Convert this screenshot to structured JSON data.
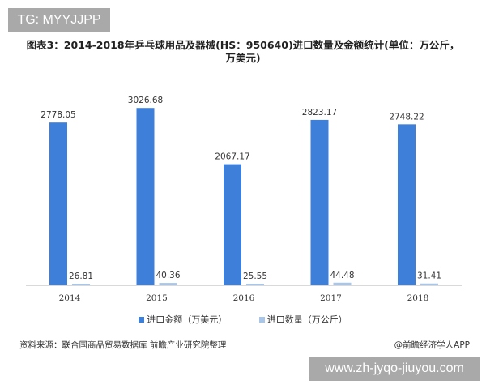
{
  "watermark_tag": "TG: MYYJJPP",
  "footer_url": "www.zh-jyqo-jiuyou.com",
  "source": "资料来源：联合国商品贸易数据库 前瞻产业研究院整理",
  "credit": "@前瞻经济学人APP",
  "chart_data": {
    "type": "bar",
    "title": "图表3：2014-2018年乒乓球用品及器械(HS：950640)进口数量及金额统计(单位：万公斤，万美元)",
    "categories": [
      "2014",
      "2015",
      "2016",
      "2017",
      "2018"
    ],
    "series": [
      {
        "name": "进口金额（万美元）",
        "values": [
          2778.05,
          3026.68,
          2067.17,
          2823.17,
          2748.22
        ],
        "color": "#3d7fd9"
      },
      {
        "name": "进口数量（万公斤）",
        "values": [
          26.81,
          40.36,
          25.55,
          44.48,
          31.41
        ],
        "color": "#a9c6e8"
      }
    ],
    "ylim": [
      0,
      3500
    ],
    "grid": false,
    "legend": "bottom"
  }
}
